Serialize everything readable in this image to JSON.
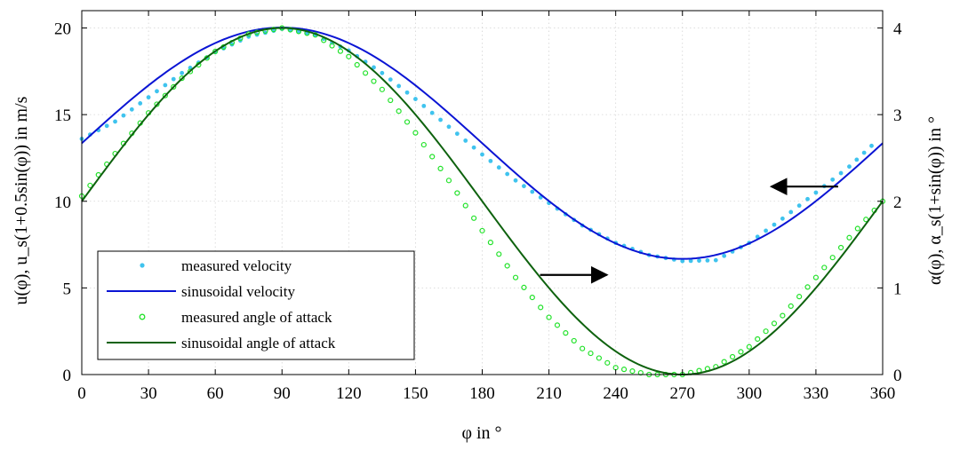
{
  "chart_data": {
    "type": "line",
    "x": {
      "ticks": [
        0,
        30,
        60,
        90,
        120,
        150,
        180,
        210,
        240,
        270,
        300,
        330,
        360
      ],
      "lim": [
        0,
        360
      ]
    },
    "y_left": {
      "ticks": [
        0,
        5,
        10,
        15,
        20
      ],
      "lim": [
        0,
        21
      ]
    },
    "y_right": {
      "ticks": [
        0,
        1,
        2,
        3,
        4
      ],
      "lim": [
        0,
        4.2
      ]
    },
    "labels": {
      "xlabel": "φ in °",
      "ylabel_left": "u(φ), u_s(1+0.5sin(φ)) in m/s",
      "ylabel_right": "α(φ), α_s(1+sin(φ)) in °"
    },
    "grid": true,
    "legend_position": "bottom-left",
    "series": [
      {
        "name": "measured velocity",
        "style": "markers",
        "axis": "left",
        "color": "#3fc3ee",
        "points": [
          [
            0,
            13.6
          ],
          [
            15,
            14.6
          ],
          [
            30,
            16.0
          ],
          [
            45,
            17.4
          ],
          [
            60,
            18.6
          ],
          [
            75,
            19.5
          ],
          [
            90,
            19.95
          ],
          [
            105,
            19.6
          ],
          [
            120,
            18.7
          ],
          [
            135,
            17.4
          ],
          [
            150,
            15.9
          ],
          [
            165,
            14.3
          ],
          [
            180,
            12.7
          ],
          [
            195,
            11.2
          ],
          [
            210,
            9.9
          ],
          [
            225,
            8.6
          ],
          [
            240,
            7.6
          ],
          [
            255,
            6.9
          ],
          [
            270,
            6.55
          ],
          [
            285,
            6.6
          ],
          [
            300,
            7.6
          ],
          [
            315,
            9.0
          ],
          [
            330,
            10.5
          ],
          [
            345,
            12.0
          ],
          [
            355,
            13.2
          ]
        ]
      },
      {
        "name": "sinusoidal velocity",
        "style": "line",
        "axis": "left",
        "color": "#0a14d4",
        "formula": "u_s(1+0.5sin(φ))",
        "params": {
          "u_s": 13.35
        }
      },
      {
        "name": "measured angle of attack",
        "style": "markers",
        "axis": "right",
        "color": "#22e22a",
        "points": [
          [
            0,
            2.06
          ],
          [
            15,
            2.55
          ],
          [
            30,
            3.02
          ],
          [
            45,
            3.42
          ],
          [
            60,
            3.73
          ],
          [
            75,
            3.93
          ],
          [
            90,
            4.0
          ],
          [
            105,
            3.92
          ],
          [
            120,
            3.67
          ],
          [
            135,
            3.29
          ],
          [
            150,
            2.79
          ],
          [
            165,
            2.24
          ],
          [
            180,
            1.66
          ],
          [
            195,
            1.12
          ],
          [
            210,
            0.66
          ],
          [
            225,
            0.3
          ],
          [
            240,
            0.08
          ],
          [
            255,
            0.0
          ],
          [
            270,
            0.0
          ],
          [
            285,
            0.09
          ],
          [
            300,
            0.32
          ],
          [
            315,
            0.68
          ],
          [
            330,
            1.12
          ],
          [
            345,
            1.58
          ],
          [
            360,
            2.0
          ]
        ]
      },
      {
        "name": "sinusoidal angle of attack",
        "style": "line",
        "axis": "right",
        "color": "#0e620e",
        "formula": "α_s(1+sin(φ))",
        "params": {
          "alpha_s": 2.0
        }
      }
    ],
    "annotations": [
      {
        "type": "arrow",
        "direction": "left",
        "points_to_axis": "left",
        "x_from": 340,
        "x_to": 310,
        "y": 10.85
      },
      {
        "type": "arrow",
        "direction": "right",
        "points_to_axis": "right",
        "x_from": 206,
        "x_to": 236,
        "y": 5.75
      }
    ]
  }
}
